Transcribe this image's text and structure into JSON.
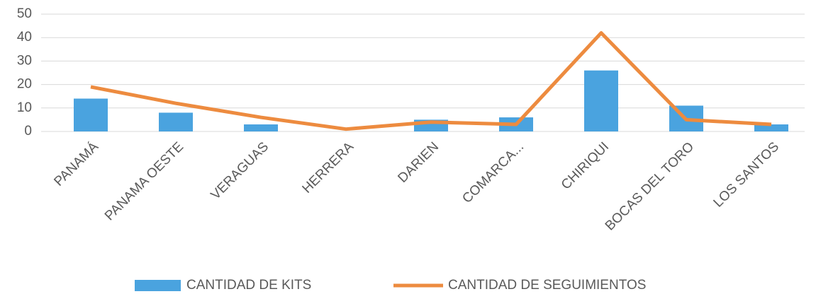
{
  "chart_data": {
    "type": "combo",
    "categories": [
      "PANAMÁ",
      "PANAMA OESTE",
      "VERAGUAS",
      "HERRERA",
      "DARIEN",
      "COMARCA...",
      "CHIRIQUI",
      "BOCAS DEL TORO",
      "LOS SANTOS"
    ],
    "series": [
      {
        "name": "CANTIDAD DE KITS",
        "type": "bar",
        "color": "#4aa3df",
        "values": [
          14,
          8,
          3,
          0,
          5,
          6,
          26,
          11,
          3
        ]
      },
      {
        "name": "CANTIDAD DE SEGUIMIENTOS",
        "type": "line",
        "color": "#ed8b3f",
        "values": [
          19,
          12,
          6,
          1,
          4,
          3,
          42,
          5,
          3
        ]
      }
    ],
    "ylim": [
      0,
      50
    ],
    "yticks": [
      0,
      10,
      20,
      30,
      40,
      50
    ],
    "grid": true,
    "legend": "bottom"
  }
}
